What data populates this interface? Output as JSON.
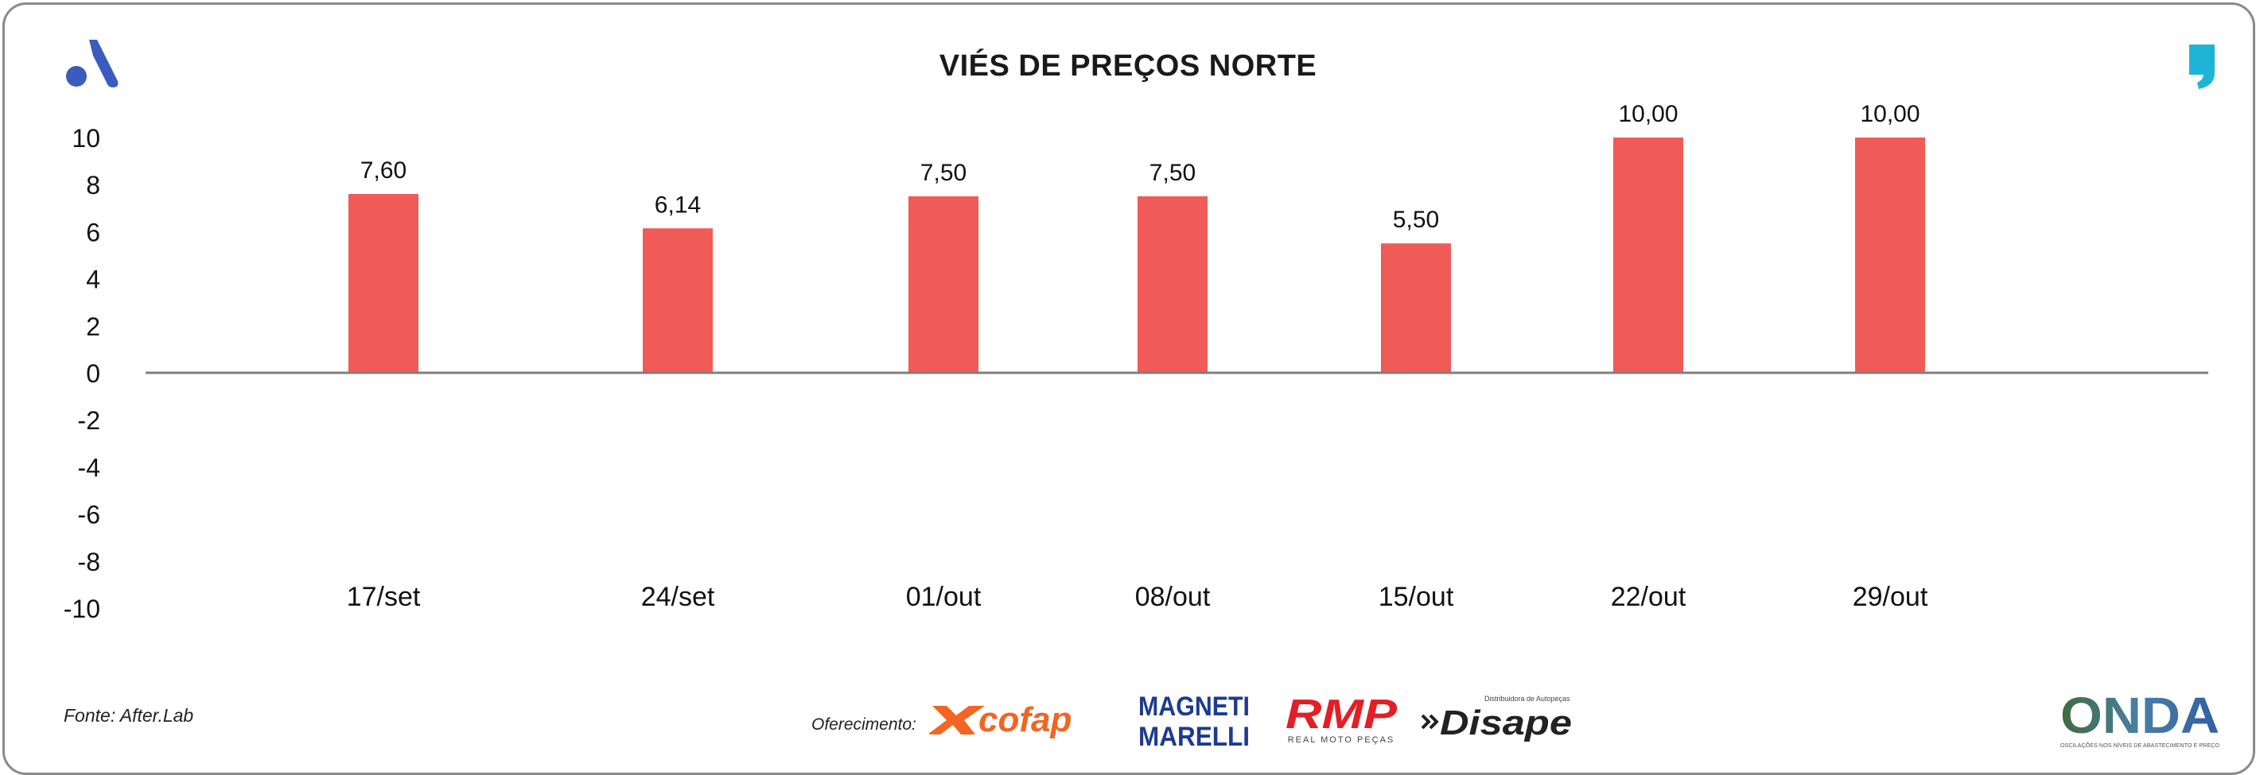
{
  "title": "VIÉS DE PREÇOS NORTE",
  "source": "Fonte: After.Lab",
  "sponsors": {
    "label": "Oferecimento:",
    "cofap": "cofap",
    "magneti_line1": "MAGNETI",
    "magneti_line2": "MARELLI",
    "rmp": "RMP",
    "rmp_sub": "REAL MOTO PEÇAS",
    "disape": "Disape",
    "disape_sub": "Distribuidora de Autopeças",
    "onda": "ONDA",
    "onda_sub": "OSCILAÇÕES NOS NÍVEIS DE ABASTECIMENTO E PREÇO"
  },
  "colors": {
    "bar": "#f05b57",
    "axis": "#7f7f7f",
    "brand_blue": "#3b5bbf",
    "quote_cyan": "#1eb4d8",
    "cofap_orange": "#f26522",
    "magneti_blue": "#1d3b8f",
    "rmp_red": "#e31e24"
  },
  "icons": {
    "left_logo": "a-logo-icon",
    "right_logo": "quote-mark-icon"
  },
  "chart_data": {
    "type": "bar",
    "categories": [
      "17/set",
      "24/set",
      "01/out",
      "08/out",
      "15/out",
      "22/out",
      "29/out"
    ],
    "values": [
      7.6,
      6.14,
      7.5,
      7.5,
      5.5,
      10.0,
      10.0
    ],
    "data_labels": [
      "7,60",
      "6,14",
      "7,50",
      "7,50",
      "5,50",
      "10,00",
      "10,00"
    ],
    "ylim": [
      -10,
      10
    ],
    "yticks": [
      "10",
      "8",
      "6",
      "4",
      "2",
      "0",
      "-2",
      "-4",
      "-6",
      "-8",
      "-10"
    ],
    "grid": false,
    "legend": "none"
  }
}
